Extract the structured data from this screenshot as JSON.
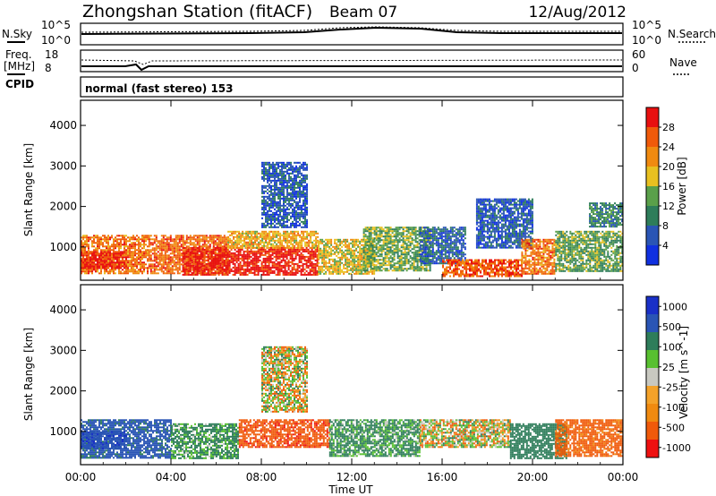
{
  "header": {
    "station": "Zhongshan Station (fitACF)",
    "beam": "Beam 07",
    "date": "12/Aug/2012",
    "mode": "normal (fast stereo) 153"
  },
  "sky_panel": {
    "left_label": "N.Sky",
    "left_ticks": [
      "10^5",
      "10^0"
    ],
    "right_label": "N.Search",
    "right_ticks": [
      "10^5",
      "10^0"
    ]
  },
  "freq_panel": {
    "left_label_1": "Freq.",
    "left_label_2": "[MHz]",
    "left_ticks": [
      "18",
      "8"
    ],
    "cpid_label": "CPID",
    "right_label": "Nave",
    "right_ticks": [
      "60",
      "0"
    ]
  },
  "colors": {
    "power_scale": [
      "#1030e0",
      "#2a55b5",
      "#2e7d5a",
      "#5aa04a",
      "#e8c020",
      "#f08a10",
      "#f05a0a",
      "#e81010"
    ],
    "velocity_scale": [
      "#ee1010",
      "#f05a0a",
      "#f08a10",
      "#f4a22a",
      "#c8c8c0",
      "#58c030",
      "#2e7d5a",
      "#2a55b5",
      "#1a30c8"
    ]
  },
  "chart_data": [
    {
      "type": "heatmap",
      "panel": "power",
      "ylabel": "Slant Range [km]",
      "xlabel": "Time UT",
      "x_ticks": [
        "00:00",
        "04:00",
        "08:00",
        "12:00",
        "16:00",
        "20:00",
        "00:00"
      ],
      "xlim_hours": [
        0,
        24
      ],
      "y_ticks": [
        1000,
        2000,
        3000,
        4000
      ],
      "ylim": [
        180,
        4620
      ],
      "colorbar": {
        "label": "Power [dB]",
        "range": [
          0,
          32
        ],
        "ticks": [
          "4",
          "8",
          "12",
          "16",
          "20",
          "24",
          "28"
        ]
      },
      "regions": [
        {
          "t": [
            0.0,
            3.0
          ],
          "r": [
            350,
            1300
          ],
          "value": 24
        },
        {
          "t": [
            0.0,
            2.0
          ],
          "r": [
            500,
            900
          ],
          "value": 29
        },
        {
          "t": [
            3.0,
            6.5
          ],
          "r": [
            350,
            1300
          ],
          "value": 25
        },
        {
          "t": [
            4.5,
            10.5
          ],
          "r": [
            300,
            1000
          ],
          "value": 30
        },
        {
          "t": [
            6.5,
            10.5
          ],
          "r": [
            1000,
            1400
          ],
          "value": 20
        },
        {
          "t": [
            8.0,
            10.0
          ],
          "r": [
            1500,
            3100
          ],
          "value": 6
        },
        {
          "t": [
            10.5,
            13.0
          ],
          "r": [
            350,
            1200
          ],
          "value": 18
        },
        {
          "t": [
            12.5,
            15.5
          ],
          "r": [
            400,
            1500
          ],
          "value": 14
        },
        {
          "t": [
            15.0,
            17.0
          ],
          "r": [
            600,
            1500
          ],
          "value": 7
        },
        {
          "t": [
            16.0,
            19.5
          ],
          "r": [
            300,
            700
          ],
          "value": 26
        },
        {
          "t": [
            17.5,
            20.0
          ],
          "r": [
            1000,
            2200
          ],
          "value": 6
        },
        {
          "t": [
            19.5,
            21.0
          ],
          "r": [
            350,
            1200
          ],
          "value": 24
        },
        {
          "t": [
            21.0,
            24.0
          ],
          "r": [
            400,
            1400
          ],
          "value": 13
        },
        {
          "t": [
            22.5,
            24.0
          ],
          "r": [
            1500,
            2100
          ],
          "value": 10
        }
      ]
    },
    {
      "type": "heatmap",
      "panel": "velocity",
      "ylabel": "Slant Range [km]",
      "xlabel": "Time UT",
      "x_ticks": [
        "00:00",
        "04:00",
        "08:00",
        "12:00",
        "16:00",
        "20:00",
        "00:00"
      ],
      "xlim_hours": [
        0,
        24
      ],
      "y_ticks": [
        1000,
        2000,
        3000,
        4000
      ],
      "ylim": [
        180,
        4620
      ],
      "colorbar": {
        "label": "Velocity [m s^-1]",
        "ticks": [
          "1000",
          "500",
          "100",
          "25",
          "-25",
          "-100",
          "-500",
          "-1000"
        ]
      },
      "regions": [
        {
          "t": [
            0.0,
            4.0
          ],
          "r": [
            350,
            1300
          ],
          "value": 600
        },
        {
          "t": [
            0.0,
            2.0
          ],
          "r": [
            600,
            1000
          ],
          "value": 900
        },
        {
          "t": [
            4.0,
            7.0
          ],
          "r": [
            350,
            1200
          ],
          "value": 150
        },
        {
          "t": [
            7.0,
            11.0
          ],
          "r": [
            600,
            1300
          ],
          "value": -400
        },
        {
          "t": [
            8.0,
            10.0
          ],
          "r": [
            1500,
            3100
          ],
          "value": 0
        },
        {
          "t": [
            11.0,
            15.0
          ],
          "r": [
            400,
            1300
          ],
          "value": 150
        },
        {
          "t": [
            15.0,
            19.0
          ],
          "r": [
            600,
            1300
          ],
          "value": 0
        },
        {
          "t": [
            19.0,
            21.5
          ],
          "r": [
            350,
            1200
          ],
          "value": 300
        },
        {
          "t": [
            21.0,
            24.0
          ],
          "r": [
            400,
            1300
          ],
          "value": -200
        }
      ]
    }
  ]
}
